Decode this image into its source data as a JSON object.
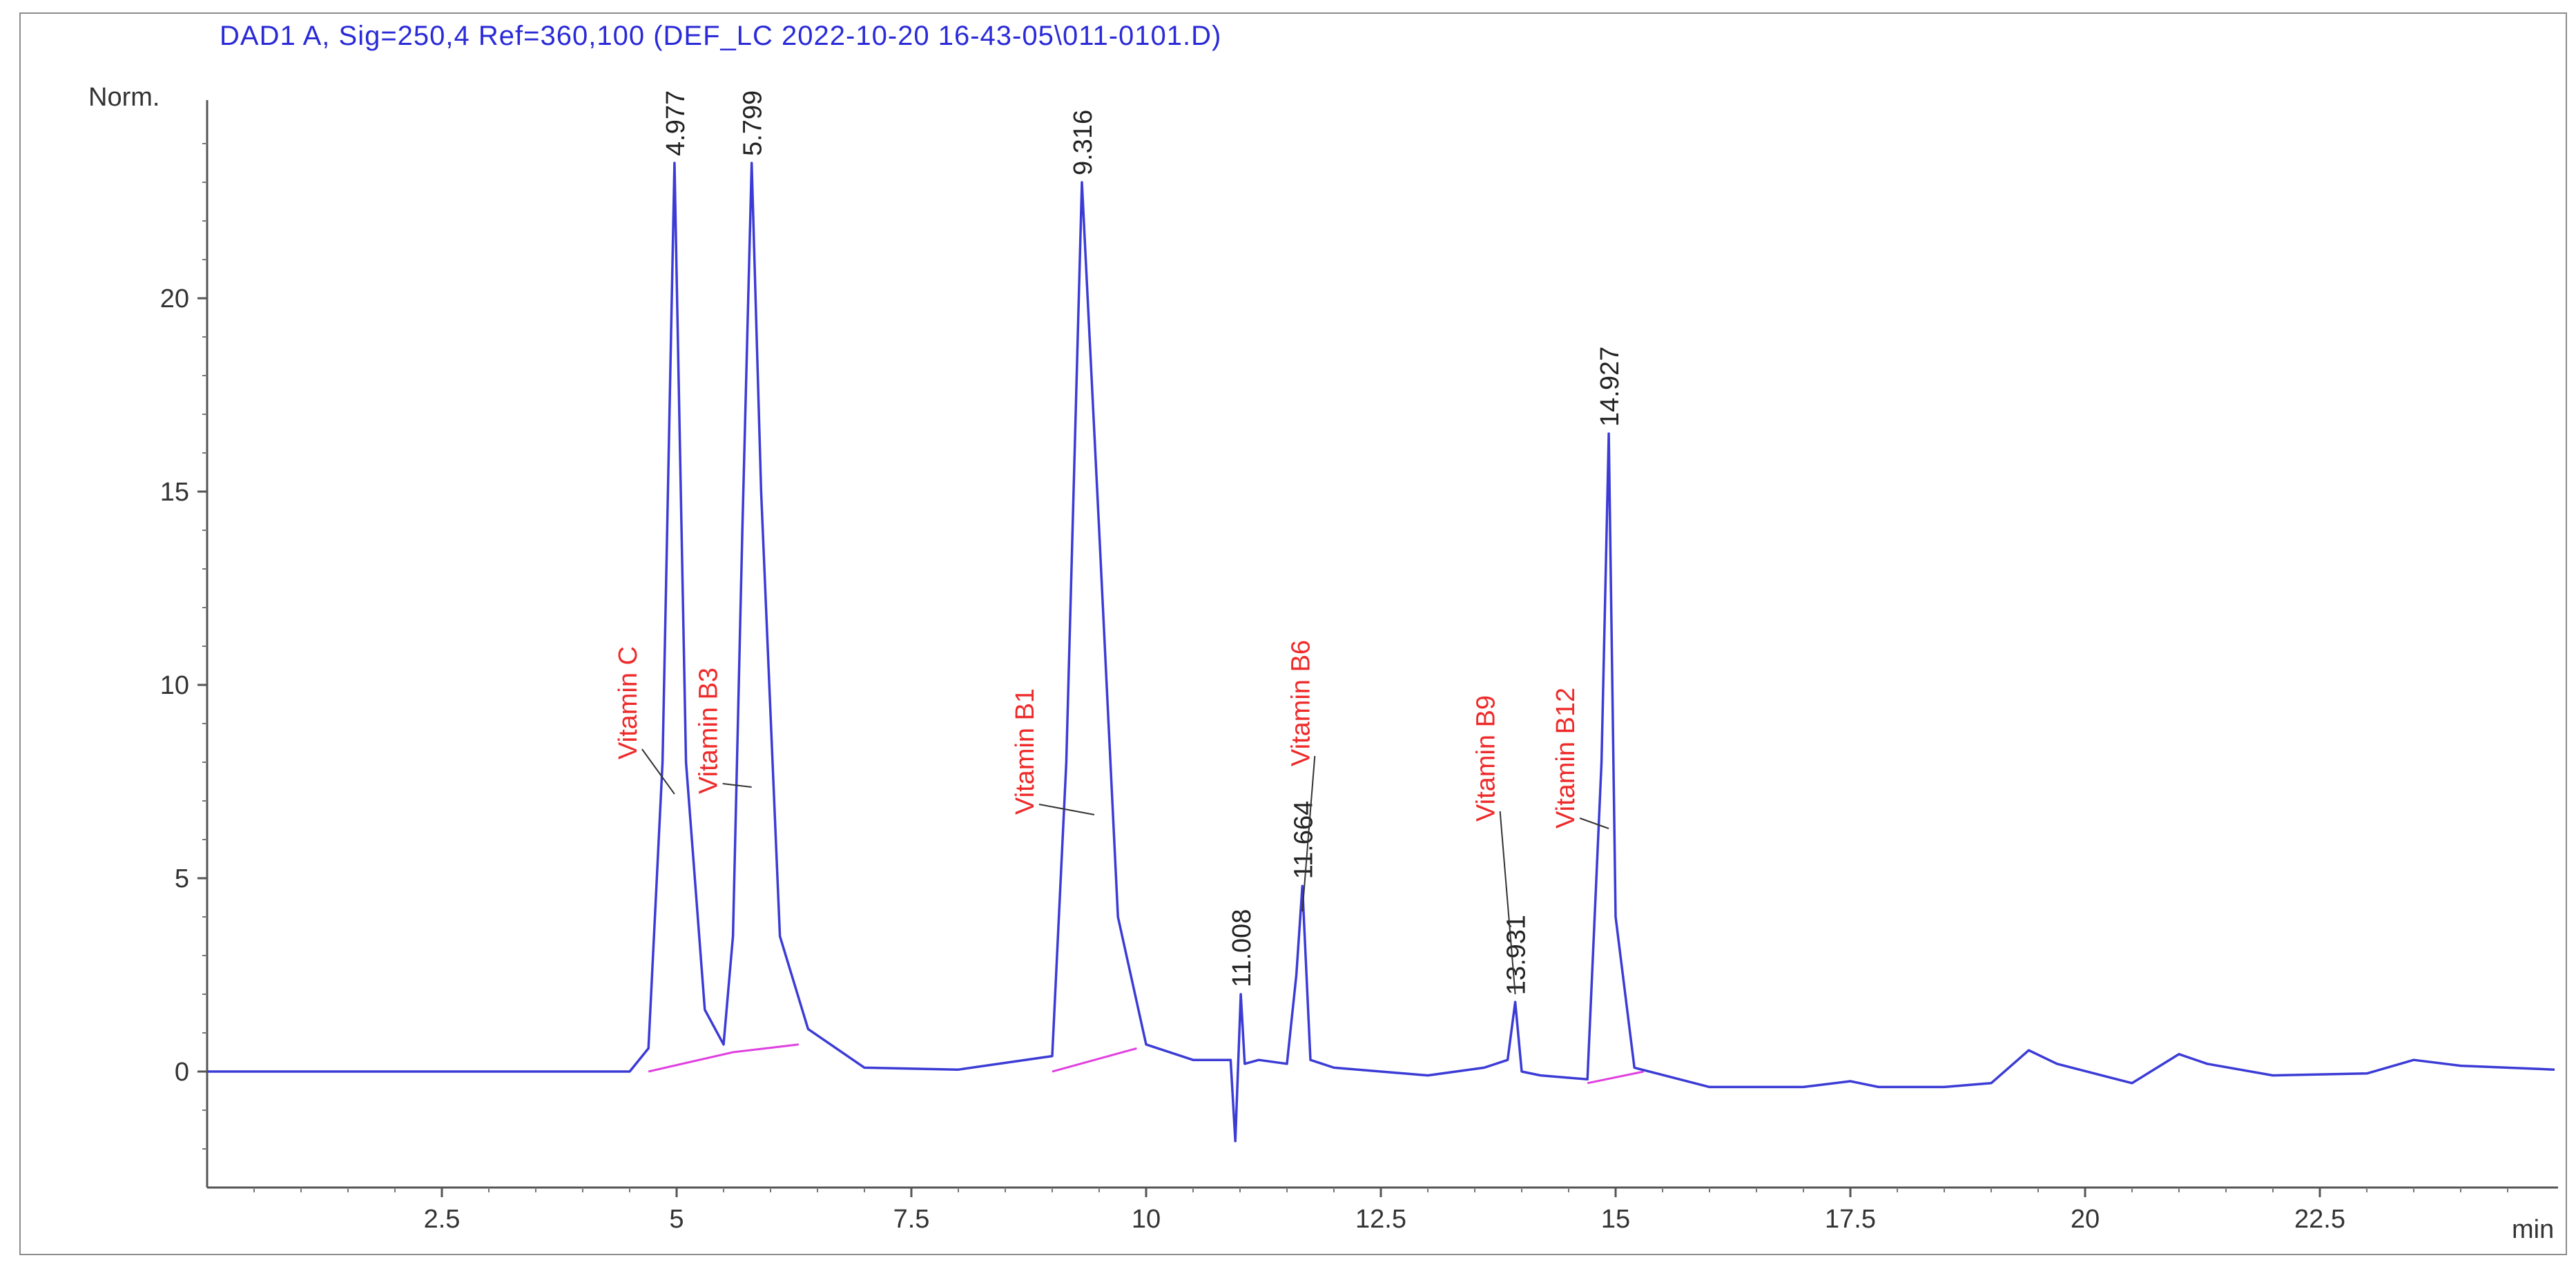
{
  "title": "DAD1 A, Sig=250,4 Ref=360,100 (DEF_LC 2022-10-20 16-43-05\\011-0101.D)",
  "chart_data": {
    "type": "line",
    "title": "DAD1 A, Sig=250,4 Ref=360,100 (DEF_LC 2022-10-20 16-43-05\\011-0101.D)",
    "ylabel": "Norm.",
    "xlabel": "min",
    "xlim": [
      0,
      25
    ],
    "ylim": [
      -3,
      25
    ],
    "xticks": [
      2.5,
      5,
      7.5,
      10,
      12.5,
      15,
      17.5,
      20,
      22.5
    ],
    "xtick_labels": [
      "2.5",
      "5",
      "7.5",
      "10",
      "12.5",
      "15",
      "17.5",
      "20",
      "22.5"
    ],
    "yticks": [
      0,
      5,
      10,
      15,
      20
    ],
    "ytick_labels": [
      "0",
      "5",
      "10",
      "15",
      "20"
    ],
    "colors": {
      "signal": "#3b3bd6",
      "baseline": "#e040e0",
      "compound_label": "#ee2a2a",
      "title": "#2a2ad8"
    },
    "series": [
      {
        "x": [
          0,
          4.5,
          4.7,
          4.85,
          4.977,
          5.1,
          5.3,
          5.5,
          5.6,
          5.7,
          5.799,
          5.9,
          6.1,
          6.4,
          7.0,
          8.0,
          9.0,
          9.15,
          9.316,
          9.5,
          9.7,
          10.0,
          10.5,
          10.9,
          10.95,
          11.008,
          11.05,
          11.2,
          11.5,
          11.6,
          11.664,
          11.75,
          12.0,
          13.0,
          13.6,
          13.85,
          13.931,
          14.0,
          14.2,
          14.7,
          14.85,
          14.927,
          15.0,
          15.2,
          16.0,
          17.0,
          17.5,
          17.6,
          17.8,
          18.5,
          19.0,
          19.4,
          19.7,
          20.5,
          21.0,
          21.3,
          22.0,
          23.0,
          23.5,
          24.0,
          25.0
        ],
        "y": [
          0,
          0,
          0.6,
          8.0,
          23.5,
          8.0,
          1.6,
          0.7,
          3.5,
          14.0,
          23.5,
          15.0,
          3.5,
          1.1,
          0.1,
          0.05,
          0.4,
          8.0,
          23.0,
          14.0,
          4.0,
          0.7,
          0.3,
          0.3,
          -1.8,
          2.0,
          0.2,
          0.3,
          0.2,
          2.5,
          4.8,
          0.3,
          0.1,
          -0.1,
          0.1,
          0.3,
          1.8,
          0.0,
          -0.1,
          -0.2,
          8.0,
          16.5,
          4.0,
          0.1,
          -0.4,
          -0.4,
          -0.25,
          -0.3,
          -0.4,
          -0.4,
          -0.3,
          0.55,
          0.2,
          -0.3,
          0.45,
          0.2,
          -0.1,
          -0.05,
          0.3,
          0.15,
          0.05
        ]
      }
    ],
    "peaks": [
      {
        "rt": "4.977",
        "x": 4.977,
        "y": 23.5
      },
      {
        "rt": "5.799",
        "x": 5.799,
        "y": 23.5
      },
      {
        "rt": "9.316",
        "x": 9.316,
        "y": 23.0
      },
      {
        "rt": "11.008",
        "x": 11.008,
        "y": 2.0
      },
      {
        "rt": "11.664",
        "x": 11.664,
        "y": 4.8
      },
      {
        "rt": "13.931",
        "x": 13.931,
        "y": 1.8
      },
      {
        "rt": "14.927",
        "x": 14.927,
        "y": 16.5
      }
    ],
    "compounds": [
      {
        "name": "Vitamin C",
        "x": 4.977
      },
      {
        "name": "Vitamin B3",
        "x": 5.799
      },
      {
        "name": "Vitamin B1",
        "x": 9.316
      },
      {
        "name": "Vitamin B6",
        "x": 11.664
      },
      {
        "name": "Vitamin B9",
        "x": 13.931
      },
      {
        "name": "Vitamin B12",
        "x": 14.927
      }
    ],
    "baselines": [
      {
        "x": [
          4.7,
          5.6,
          6.3
        ],
        "y": [
          0.0,
          0.5,
          0.7
        ]
      },
      {
        "x": [
          9.0,
          9.9
        ],
        "y": [
          0.0,
          0.6
        ]
      },
      {
        "x": [
          14.7,
          15.3
        ],
        "y": [
          -0.3,
          0.0
        ]
      }
    ]
  }
}
